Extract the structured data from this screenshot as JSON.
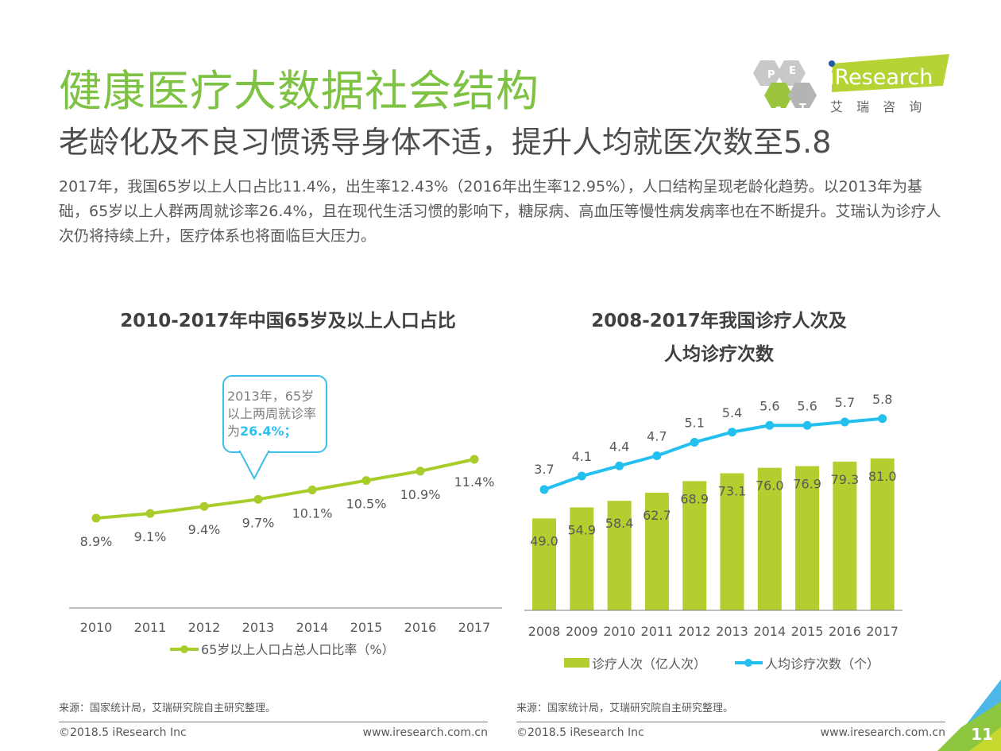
{
  "header": {
    "title": "健康医疗大数据社会结构",
    "subtitle": "老龄化及不良习惯诱导身体不适，提升人均就医次数至5.8",
    "intro": "2017年，我国65岁以上人口占比11.4%，出生率12.43%（2016年出生率12.95%），人口结构呈现老龄化趋势。以2013年为基础，65岁以上人群两周就诊率26.4%，且在现代生活习惯的影响下，糖尿病、高血压等慢性病发病率也在不断提升。艾瑞认为诊疗人次仍将持续上升，医疗体系也将面临巨大压力。"
  },
  "logo": {
    "brand": "iResearch",
    "brand_cn": "艾 瑞 咨 询",
    "hex_letters": [
      "P",
      "E",
      "S",
      "T"
    ]
  },
  "colors": {
    "title_green": "#7dc242",
    "bar_green": "#b2cf2f",
    "line_green": "#a8cc2a",
    "line_blue": "#23c0ef",
    "callout_blue": "#3bbfe6"
  },
  "chart_data": [
    {
      "type": "line",
      "title": "2010-2017年中国65岁及以上人口占比",
      "categories": [
        "2010",
        "2011",
        "2012",
        "2013",
        "2014",
        "2015",
        "2016",
        "2017"
      ],
      "series": [
        {
          "name": "65岁以上人口占总人口比率（%）",
          "values": [
            8.9,
            9.1,
            9.4,
            9.7,
            10.1,
            10.5,
            10.9,
            11.4
          ],
          "labels": [
            "8.9%",
            "9.1%",
            "9.4%",
            "9.7%",
            "10.1%",
            "10.5%",
            "10.9%",
            "11.4%"
          ]
        }
      ],
      "legend": "bottom",
      "grid": false,
      "annotation": {
        "category": "2013",
        "text_line1": "2013年，65岁",
        "text_line2": "以上两周就诊率",
        "text_prefix": "为",
        "highlight": "26.4%；"
      }
    },
    {
      "type": "bar",
      "title_line1": "2008-2017年我国诊疗人次及",
      "title_line2": "人均诊疗次数",
      "categories": [
        "2008",
        "2009",
        "2010",
        "2011",
        "2012",
        "2013",
        "2014",
        "2015",
        "2016",
        "2017"
      ],
      "series": [
        {
          "name": "诊疗人次（亿人次）",
          "type": "bar",
          "values": [
            49.0,
            54.9,
            58.4,
            62.7,
            68.9,
            73.1,
            76.0,
            76.9,
            79.3,
            81.0
          ],
          "labels": [
            "49.0",
            "54.9",
            "58.4",
            "62.7",
            "68.9",
            "73.1",
            "76.0",
            "76.9",
            "79.3",
            "81.0"
          ]
        },
        {
          "name": "人均诊疗次数（个）",
          "type": "line",
          "values": [
            3.7,
            4.1,
            4.4,
            4.7,
            5.1,
            5.4,
            5.6,
            5.6,
            5.7,
            5.8
          ],
          "labels": [
            "3.7",
            "4.1",
            "4.4",
            "4.7",
            "5.1",
            "5.4",
            "5.6",
            "5.6",
            "5.7",
            "5.8"
          ]
        }
      ],
      "legend": "bottom",
      "grid": false
    }
  ],
  "footer": {
    "source_left": "来源：国家统计局，艾瑞研究院自主研究整理。",
    "source_right": "来源：国家统计局，艾瑞研究院自主研究整理。",
    "copyright_left": "©2018.5 iResearch Inc",
    "copyright_right": "©2018.5 iResearch Inc",
    "url_left": "www.iresearch.com.cn",
    "url_right": "www.iresearch.com.cn",
    "page_number": "11"
  }
}
